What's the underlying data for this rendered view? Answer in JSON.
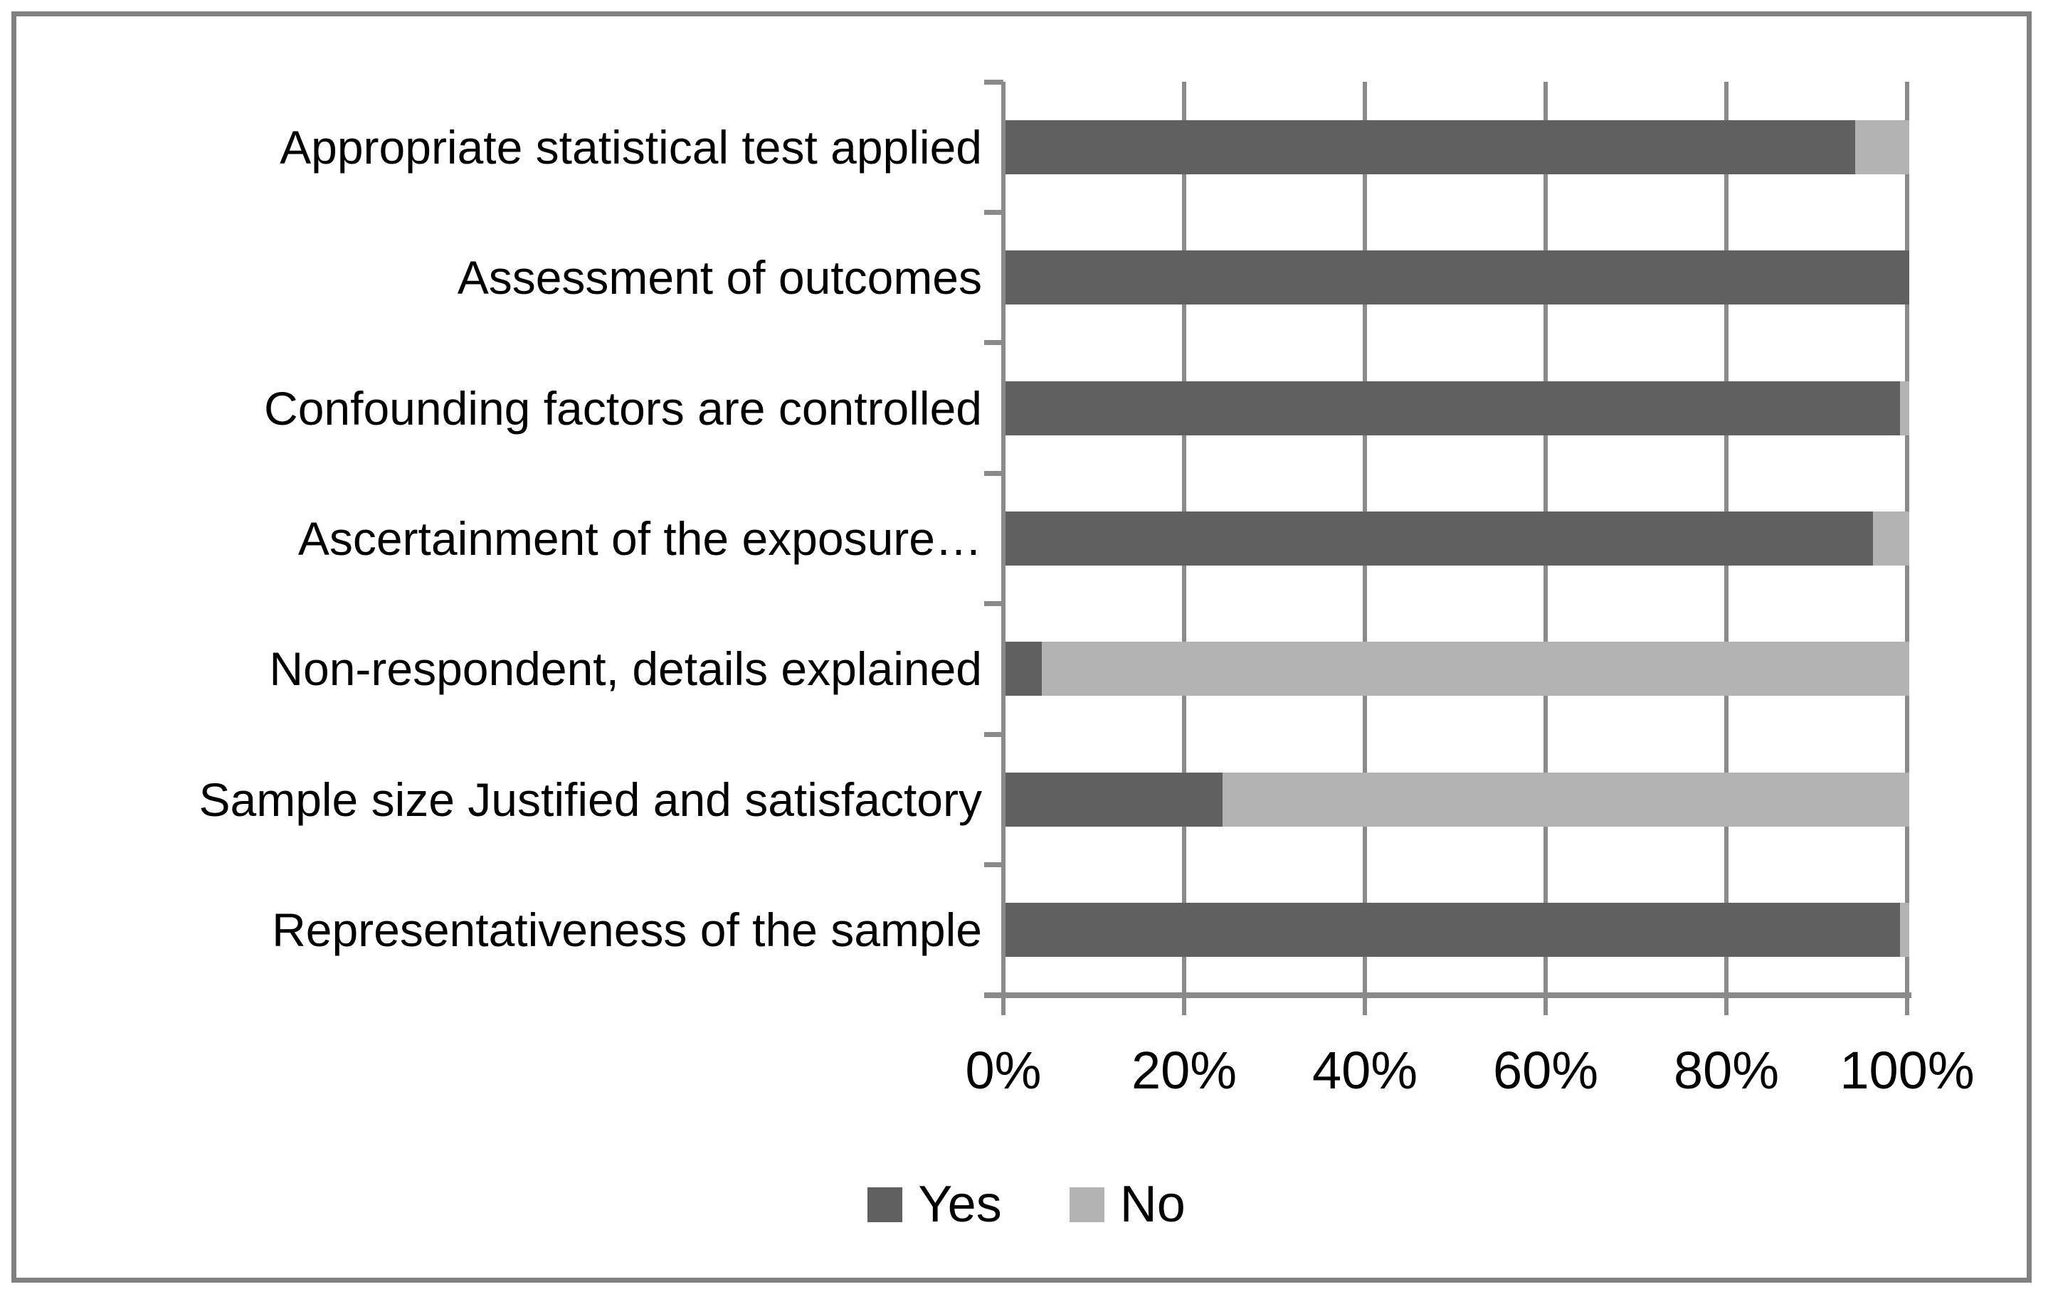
{
  "chart_data": {
    "type": "bar",
    "orientation": "horizontal",
    "stacked": true,
    "unit": "percent",
    "categories": [
      "Appropriate statistical test applied",
      "Assessment of outcomes",
      "Confounding factors are controlled",
      "Ascertainment of the exposure…",
      "Non-respondent, details explained",
      "Sample size Justified and satisfactory",
      "Representativeness of the sample"
    ],
    "series": [
      {
        "name": "Yes",
        "color": "#606060",
        "values": [
          94,
          100,
          99,
          96,
          4,
          24,
          99
        ]
      },
      {
        "name": "No",
        "color": "#b3b3b3",
        "values": [
          6,
          0,
          1,
          4,
          96,
          76,
          1
        ]
      }
    ],
    "x_ticks": [
      "0%",
      "20%",
      "40%",
      "60%",
      "80%",
      "100%"
    ],
    "xlim": [
      0,
      100
    ],
    "grid": true,
    "legend_position": "bottom",
    "axis_color": "#8a8a8a",
    "border_color": "#808080",
    "background": "#ffffff",
    "text_color": "#000000"
  }
}
